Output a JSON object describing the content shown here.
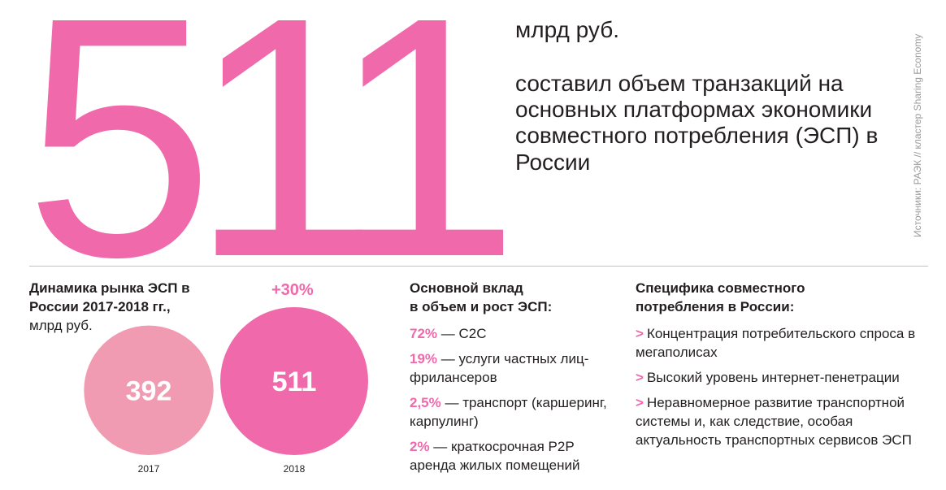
{
  "hero": {
    "big_number": "511",
    "unit": "млрд руб.",
    "headline": "составил объем транзакций на основных платформах экономики совместного потребления (ЭСП) в России"
  },
  "source_note": "Источники: РАЭК // кластер Sharing Economy",
  "dynamics": {
    "title": "Динамика рынка ЭСП в России 2017-2018 гг.,",
    "subtitle": "млрд руб.",
    "growth": "+30%"
  },
  "chart_data": {
    "type": "bubble",
    "categories": [
      "2017",
      "2018"
    ],
    "values": [
      392,
      511
    ],
    "colors": [
      "#f19bb2",
      "#f06aab"
    ],
    "annotation": "+30%"
  },
  "contribution": {
    "title_line1": "Основной вклад",
    "title_line2": "в объем и рост ЭСП:",
    "items": [
      {
        "pct": "72%",
        "text": " — C2C"
      },
      {
        "pct": "19%",
        "text": " — услуги частных лиц-фрилансеров"
      },
      {
        "pct": "2,5%",
        "text": " — транспорт (каршеринг, карпулинг)"
      },
      {
        "pct": "2%",
        "text": " — краткосрочная P2P аренда жилых помещений"
      }
    ]
  },
  "specifics": {
    "title_line1": "Специфика совместного",
    "title_line2": "потребления в России:",
    "arrow": ">",
    "items": [
      "Концентрация потребительского спроса в мегаполисах",
      "Высокий уровень интернет-пенетрации",
      "Неравномерное развитие транспортной системы и, как следствие, особая актуальность транспортных сервисов ЭСП"
    ]
  },
  "colors": {
    "accent_pink": "#f06aab",
    "light_pink": "#f19bb2",
    "divider": "#f4a8c9",
    "text": "#231f20"
  }
}
